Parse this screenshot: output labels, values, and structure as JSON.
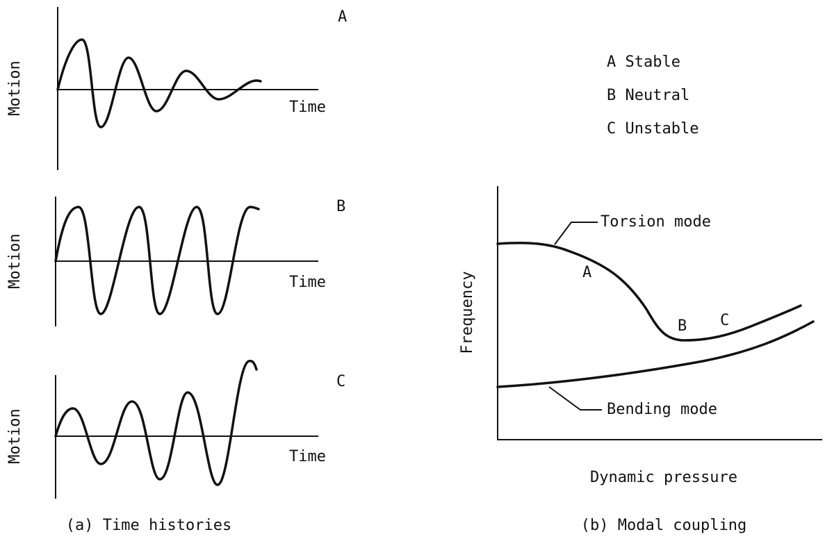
{
  "panel_a": {
    "caption": "(a) Time histories",
    "plots": [
      {
        "label": "A",
        "y_axis": "Motion",
        "x_axis": "Time"
      },
      {
        "label": "B",
        "y_axis": "Motion",
        "x_axis": "Time"
      },
      {
        "label": "C",
        "y_axis": "Motion",
        "x_axis": "Time"
      }
    ]
  },
  "legend": [
    "A Stable",
    "B Neutral",
    "C Unstable"
  ],
  "panel_b": {
    "caption": "(b) Modal coupling",
    "y_axis": "Frequency",
    "x_axis": "Dynamic pressure",
    "curve_labels": [
      "Torsion mode",
      "Bending mode"
    ],
    "point_labels": [
      "A",
      "B",
      "C"
    ]
  }
}
